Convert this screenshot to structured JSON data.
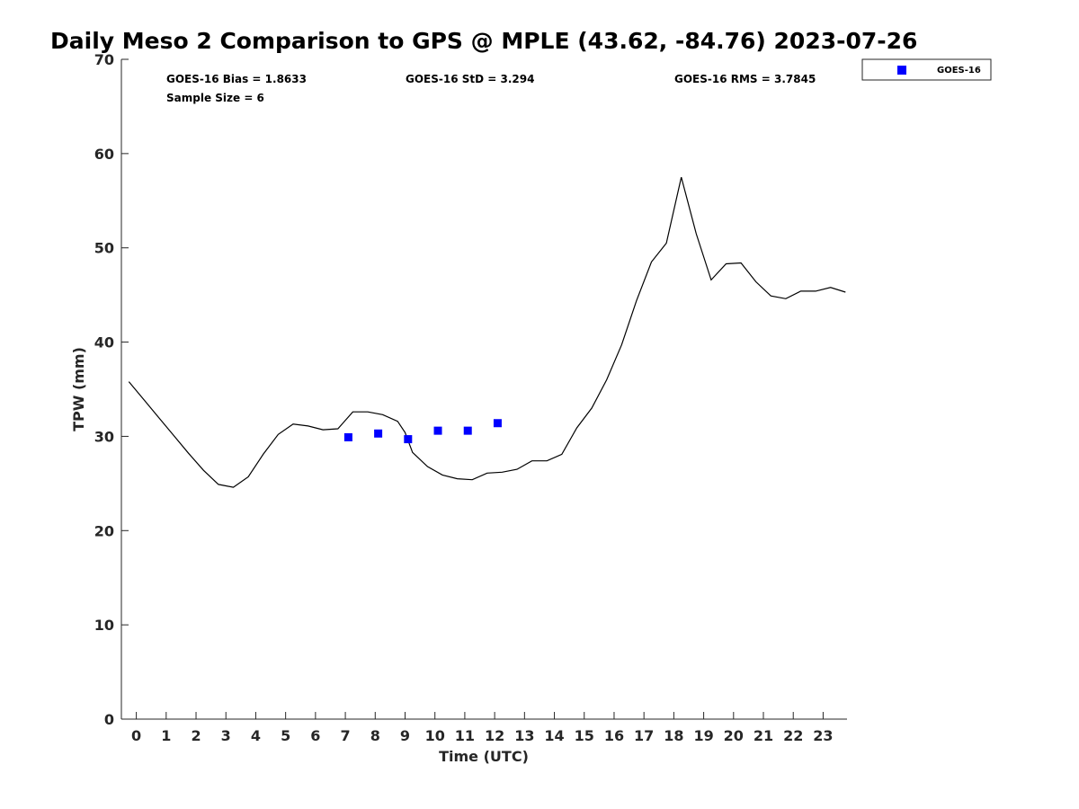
{
  "chart_data": {
    "type": "scatter",
    "title": "Daily Meso 2 Comparison to GPS @ MPLE (43.62, -84.76) 2023-07-26",
    "xlabel": "Time (UTC)",
    "ylabel": "TPW (mm)",
    "xlim": [
      -0.5,
      23.8
    ],
    "ylim": [
      0,
      70
    ],
    "x_ticks": [
      "0",
      "1",
      "2",
      "3",
      "4",
      "5",
      "6",
      "7",
      "8",
      "9",
      "10",
      "11",
      "12",
      "13",
      "14",
      "15",
      "16",
      "17",
      "18",
      "19",
      "20",
      "21",
      "22",
      "23"
    ],
    "y_ticks": [
      "0",
      "10",
      "20",
      "30",
      "40",
      "50",
      "60",
      "70"
    ],
    "grid": false,
    "legend_position": "outside-top-right",
    "stats": {
      "bias": "GOES-16 Bias = 1.8633",
      "std": "GOES-16 StD = 3.294",
      "rms": "GOES-16 RMS = 3.7845",
      "sample": "Sample Size = 6"
    },
    "series": [
      {
        "type": "line",
        "color": "#000000",
        "x": [
          -0.25,
          0.25,
          0.75,
          1.25,
          1.75,
          2.25,
          2.75,
          3.25,
          3.75,
          4.25,
          4.75,
          5.25,
          5.75,
          6.25,
          6.75,
          7.25,
          7.75,
          8.25,
          8.75,
          9.0,
          9.25,
          9.75,
          10.25,
          10.75,
          11.25,
          11.75,
          12.25,
          12.75,
          13.25,
          13.75,
          14.25,
          14.75,
          15.25,
          15.75,
          16.25,
          16.75,
          17.25,
          17.75,
          18.25,
          18.75,
          19.25,
          19.75,
          20.25,
          20.75,
          21.25,
          21.75,
          22.25,
          22.75,
          23.25,
          23.75
        ],
        "y": [
          35.8,
          33.9,
          32.0,
          30.1,
          28.2,
          26.4,
          24.9,
          24.6,
          25.7,
          28.1,
          30.2,
          31.3,
          31.1,
          30.7,
          30.8,
          32.6,
          32.6,
          32.3,
          31.6,
          30.4,
          28.3,
          26.8,
          25.9,
          25.5,
          25.4,
          26.1,
          26.2,
          26.5,
          27.4,
          27.4,
          28.1,
          30.9,
          33.0,
          36.0,
          39.7,
          44.4,
          48.5,
          50.5,
          57.5,
          51.5,
          46.6,
          48.3,
          48.4,
          46.4,
          44.9,
          44.6,
          45.4,
          45.4,
          45.8,
          45.3
        ]
      },
      {
        "name": "GOES-16",
        "type": "scatter",
        "marker": "square",
        "color": "#0000ff",
        "x": [
          7.1,
          8.1,
          9.1,
          10.1,
          11.1,
          12.1
        ],
        "y": [
          29.9,
          30.3,
          29.7,
          30.6,
          30.6,
          31.4
        ]
      }
    ]
  }
}
